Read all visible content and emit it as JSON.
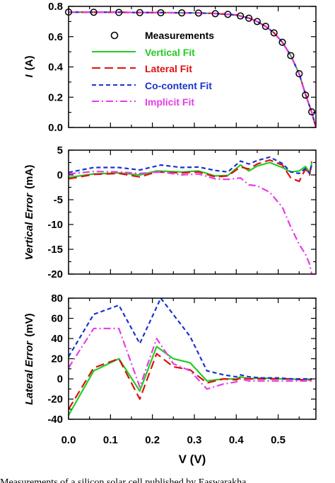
{
  "colors": {
    "measurements": "#000000",
    "vertical_fit": "#22cc22",
    "lateral_fit": "#dd1111",
    "cocontent_fit": "#1a33cc",
    "implicit_fit": "#e63ce6"
  },
  "x_tick_labels": [
    "0.0",
    "0.1",
    "0.2",
    "0.3",
    "0.4",
    "0.5"
  ],
  "caption": "Measurements of a silicon solar cell published by Easwarakha",
  "chart_data": [
    {
      "type": "line",
      "ylabel_italic": "I",
      "ylabel_unit": "(A)",
      "xlabel": "V (V)",
      "xlim": [
        0,
        0.59
      ],
      "ylim": [
        0,
        0.8
      ],
      "yticks": [
        "0.0",
        "0.2",
        "0.4",
        "0.6",
        "0.8"
      ],
      "legend": {
        "placement": "center-left",
        "entries": [
          "Measurements",
          "Vertical Fit",
          "Lateral Fit",
          "Co-content Fit",
          "Implicit Fit"
        ]
      },
      "measurements": {
        "name": "Measurements",
        "x": [
          0.0,
          0.06,
          0.12,
          0.17,
          0.22,
          0.27,
          0.31,
          0.35,
          0.38,
          0.41,
          0.43,
          0.45,
          0.47,
          0.49,
          0.51,
          0.53,
          0.55,
          0.565,
          0.58
        ],
        "y": [
          0.762,
          0.761,
          0.76,
          0.759,
          0.758,
          0.757,
          0.756,
          0.752,
          0.747,
          0.737,
          0.722,
          0.7,
          0.668,
          0.625,
          0.563,
          0.475,
          0.355,
          0.214,
          0.103
        ]
      },
      "series": [
        {
          "name": "Vertical Fit",
          "color_key": "vertical_fit",
          "x": [
            0.0,
            0.1,
            0.2,
            0.3,
            0.35,
            0.4,
            0.43,
            0.45,
            0.47,
            0.49,
            0.51,
            0.53,
            0.55,
            0.565,
            0.58,
            0.59
          ],
          "y": [
            0.762,
            0.761,
            0.759,
            0.757,
            0.753,
            0.743,
            0.723,
            0.7,
            0.668,
            0.625,
            0.563,
            0.475,
            0.355,
            0.22,
            0.1,
            0.0
          ]
        },
        {
          "name": "Lateral Fit",
          "color_key": "lateral_fit",
          "x": [
            0.0,
            0.1,
            0.2,
            0.3,
            0.35,
            0.4,
            0.43,
            0.45,
            0.47,
            0.49,
            0.51,
            0.53,
            0.55,
            0.565,
            0.58,
            0.59
          ],
          "y": [
            0.762,
            0.761,
            0.759,
            0.757,
            0.753,
            0.743,
            0.723,
            0.7,
            0.668,
            0.625,
            0.563,
            0.475,
            0.355,
            0.22,
            0.1,
            0.0
          ]
        },
        {
          "name": "Co-content Fit",
          "color_key": "cocontent_fit",
          "x": [
            0.0,
            0.1,
            0.2,
            0.3,
            0.35,
            0.4,
            0.43,
            0.45,
            0.47,
            0.49,
            0.51,
            0.53,
            0.55,
            0.565,
            0.58,
            0.59
          ],
          "y": [
            0.762,
            0.761,
            0.759,
            0.757,
            0.753,
            0.743,
            0.723,
            0.7,
            0.668,
            0.625,
            0.563,
            0.475,
            0.355,
            0.22,
            0.1,
            0.0
          ]
        },
        {
          "name": "Implicit Fit",
          "color_key": "implicit_fit",
          "x": [
            0.0,
            0.1,
            0.2,
            0.3,
            0.35,
            0.4,
            0.43,
            0.45,
            0.47,
            0.49,
            0.51,
            0.53,
            0.55,
            0.565,
            0.58,
            0.59
          ],
          "y": [
            0.762,
            0.761,
            0.759,
            0.757,
            0.753,
            0.743,
            0.723,
            0.7,
            0.668,
            0.625,
            0.563,
            0.475,
            0.355,
            0.22,
            0.1,
            0.0
          ]
        }
      ]
    },
    {
      "type": "line",
      "ylabel_italic": "Vertical Error",
      "ylabel_unit": "(mA)",
      "xlabel": "V (V)",
      "xlim": [
        0,
        0.59
      ],
      "ylim": [
        -20,
        5
      ],
      "yticks": [
        "-20",
        "-15",
        "-10",
        "-5",
        "0",
        "5"
      ],
      "series": [
        {
          "name": "Vertical Fit",
          "color_key": "vertical_fit",
          "x": [
            0.0,
            0.06,
            0.12,
            0.17,
            0.21,
            0.27,
            0.31,
            0.35,
            0.38,
            0.41,
            0.43,
            0.45,
            0.48,
            0.51,
            0.53,
            0.55,
            0.565,
            0.575,
            0.58
          ],
          "y": [
            -0.5,
            0.2,
            0.4,
            0.0,
            0.8,
            0.6,
            0.8,
            -0.2,
            -0.1,
            2.0,
            0.8,
            1.8,
            2.5,
            1.5,
            0.6,
            0.8,
            1.7,
            0.5,
            2.4
          ]
        },
        {
          "name": "Lateral Fit",
          "color_key": "lateral_fit",
          "x": [
            0.0,
            0.06,
            0.12,
            0.17,
            0.21,
            0.27,
            0.31,
            0.35,
            0.38,
            0.41,
            0.43,
            0.45,
            0.48,
            0.51,
            0.53,
            0.55,
            0.565,
            0.575,
            0.58
          ],
          "y": [
            -0.8,
            0.1,
            0.3,
            -0.4,
            0.6,
            0.4,
            0.6,
            -0.4,
            -0.2,
            1.6,
            1.2,
            2.2,
            3.0,
            2.0,
            -0.6,
            -1.3,
            1.2,
            0.0,
            2.7
          ]
        },
        {
          "name": "Co-content Fit",
          "color_key": "cocontent_fit",
          "x": [
            0.0,
            0.06,
            0.12,
            0.17,
            0.22,
            0.27,
            0.31,
            0.35,
            0.38,
            0.41,
            0.43,
            0.45,
            0.48,
            0.51,
            0.53,
            0.55,
            0.565,
            0.575,
            0.58
          ],
          "y": [
            0.5,
            1.5,
            1.5,
            1.0,
            2.0,
            1.5,
            1.6,
            0.9,
            0.6,
            2.8,
            2.2,
            2.9,
            3.6,
            2.3,
            0.6,
            0.3,
            1.3,
            0.3,
            2.0
          ]
        },
        {
          "name": "Implicit Fit",
          "color_key": "implicit_fit",
          "x": [
            0.0,
            0.06,
            0.12,
            0.17,
            0.22,
            0.27,
            0.31,
            0.35,
            0.38,
            0.41,
            0.43,
            0.45,
            0.48,
            0.51,
            0.53,
            0.55,
            0.565,
            0.575,
            0.58
          ],
          "y": [
            0.2,
            0.7,
            0.6,
            0.3,
            0.6,
            0.0,
            0.2,
            -0.8,
            -0.9,
            -0.6,
            -2.0,
            -2.2,
            -3.5,
            -6.5,
            -10.5,
            -14.0,
            -16.0,
            -18.0,
            -20.0
          ]
        }
      ]
    },
    {
      "type": "line",
      "ylabel_italic": "Lateral Error",
      "ylabel_unit": "(mV)",
      "xlabel": "V (V)",
      "xlim": [
        0,
        0.59
      ],
      "ylim": [
        -40,
        80
      ],
      "yticks": [
        "-40",
        "-20",
        "0",
        "20",
        "40",
        "60",
        "80"
      ],
      "series": [
        {
          "name": "Vertical Fit",
          "color_key": "vertical_fit",
          "x": [
            0.0,
            0.06,
            0.12,
            0.17,
            0.21,
            0.25,
            0.29,
            0.33,
            0.37,
            0.4,
            0.41,
            0.43,
            0.46,
            0.5,
            0.53,
            0.56,
            0.58
          ],
          "y": [
            -36,
            8,
            20,
            -12,
            32,
            20,
            16,
            -2,
            0,
            0,
            2,
            0,
            1,
            0,
            0,
            -1,
            0
          ]
        },
        {
          "name": "Lateral Fit",
          "color_key": "lateral_fit",
          "x": [
            0.0,
            0.06,
            0.12,
            0.17,
            0.21,
            0.25,
            0.29,
            0.33,
            0.37,
            0.4,
            0.41,
            0.43,
            0.46,
            0.5,
            0.53,
            0.56,
            0.58
          ],
          "y": [
            -30,
            11,
            20,
            -20,
            25,
            12,
            9,
            -4,
            0,
            -1,
            1,
            0,
            0,
            0,
            0,
            -1,
            -1
          ]
        },
        {
          "name": "Co-content Fit",
          "color_key": "cocontent_fit",
          "x": [
            0.0,
            0.06,
            0.12,
            0.17,
            0.22,
            0.29,
            0.33,
            0.37,
            0.4,
            0.41,
            0.43,
            0.46,
            0.5,
            0.53,
            0.56,
            0.58
          ],
          "y": [
            22,
            64,
            73,
            35,
            80,
            42,
            8,
            4,
            2,
            4,
            2,
            1,
            1,
            0,
            0,
            0
          ]
        },
        {
          "name": "Implicit Fit",
          "color_key": "implicit_fit",
          "x": [
            0.0,
            0.06,
            0.12,
            0.17,
            0.21,
            0.25,
            0.29,
            0.33,
            0.37,
            0.4,
            0.41,
            0.43,
            0.46,
            0.5,
            0.53,
            0.56,
            0.58
          ],
          "y": [
            11,
            50,
            50,
            -8,
            40,
            15,
            8,
            -10,
            -5,
            -3,
            0,
            -2,
            -2,
            -2,
            -2,
            -2,
            -2
          ]
        }
      ]
    }
  ]
}
